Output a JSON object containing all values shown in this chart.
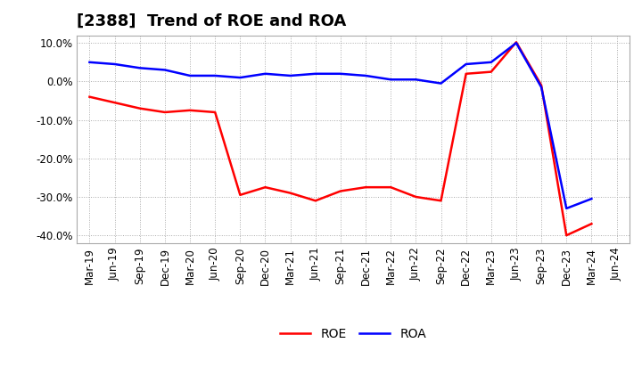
{
  "title": "[2388]  Trend of ROE and ROA",
  "labels": [
    "Mar-19",
    "Jun-19",
    "Sep-19",
    "Dec-19",
    "Mar-20",
    "Jun-20",
    "Sep-20",
    "Dec-20",
    "Mar-21",
    "Jun-21",
    "Sep-21",
    "Dec-21",
    "Mar-22",
    "Jun-22",
    "Sep-22",
    "Dec-22",
    "Mar-23",
    "Jun-23",
    "Sep-23",
    "Dec-23",
    "Mar-24",
    "Jun-24"
  ],
  "ROE": [
    -4.0,
    -5.5,
    -7.0,
    -8.0,
    -7.5,
    -8.0,
    -29.5,
    -27.5,
    -29.0,
    -31.0,
    -28.5,
    -27.5,
    -27.5,
    -30.0,
    -31.0,
    2.0,
    2.5,
    10.2,
    -1.0,
    -40.0,
    -37.0,
    null
  ],
  "ROA": [
    5.0,
    4.5,
    3.5,
    3.0,
    1.5,
    1.5,
    1.0,
    2.0,
    1.5,
    2.0,
    2.0,
    1.5,
    0.5,
    0.5,
    -0.5,
    4.5,
    5.0,
    10.0,
    -1.5,
    -33.0,
    -30.5,
    null
  ],
  "roe_color": "#FF0000",
  "roa_color": "#0000FF",
  "background_color": "#FFFFFF",
  "grid_color": "#AAAAAA",
  "ylim": [
    -42,
    12
  ],
  "yticks": [
    -40.0,
    -30.0,
    -20.0,
    -10.0,
    0.0,
    10.0
  ],
  "line_width": 1.8,
  "title_fontsize": 13,
  "tick_fontsize": 8.5,
  "legend_fontsize": 10
}
